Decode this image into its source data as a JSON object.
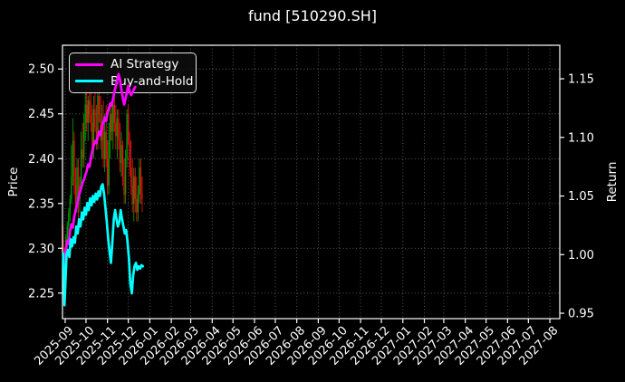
{
  "title": "fund [510290.SH]",
  "legend": {
    "items": [
      {
        "label": "AI Strategy",
        "color": "#ff00ff"
      },
      {
        "label": "Buy-and-Hold",
        "color": "#00ffff"
      }
    ]
  },
  "colors": {
    "background": "#000000",
    "text": "#ffffff",
    "axis": "#ffffff",
    "grid": "#ffffff",
    "up_candle": "#009c00",
    "down_candle": "#ea1010",
    "ai_strategy": "#ff00ff",
    "buy_and_hold": "#00ffff"
  },
  "chart_data": {
    "type": "candlestick",
    "title": "fund [510290.SH]",
    "price_axis": {
      "label": "Price",
      "tick_labels": [
        "2.25",
        "2.30",
        "2.35",
        "2.40",
        "2.45",
        "2.50"
      ],
      "lim": [
        2.2215,
        2.5265
      ]
    },
    "return_axis": {
      "label": "Return",
      "tick_labels": [
        "0.95",
        "1.00",
        "1.05",
        "1.10",
        "1.15"
      ],
      "lim": [
        0.9454,
        1.1786
      ]
    },
    "x_axis": {
      "tick_labels": [
        "2025-09",
        "2025-10",
        "2025-11",
        "2025-12",
        "2026-01",
        "2026-02",
        "2026-03",
        "2026-04",
        "2026-05",
        "2026-06",
        "2026-07",
        "2026-08",
        "2026-09",
        "2026-10",
        "2026-11",
        "2026-12",
        "2027-01",
        "2027-02",
        "2027-03",
        "2027-04",
        "2027-05",
        "2027-06",
        "2027-07",
        "2027-08"
      ],
      "tick_day_offsets": [
        0,
        30,
        61,
        91,
        122,
        153,
        181,
        212,
        242,
        273,
        303,
        334,
        365,
        395,
        426,
        456,
        487,
        518,
        546,
        577,
        607,
        638,
        668,
        699
      ],
      "lim_days": [
        -3.9,
        713.3
      ]
    },
    "candles_dohlc": [
      [
        -3,
        2.31,
        2.325,
        2.29,
        2.295
      ],
      [
        -1,
        2.295,
        2.3,
        2.237,
        2.28
      ],
      [
        1,
        2.28,
        2.315,
        2.27,
        2.31
      ],
      [
        3,
        2.31,
        2.33,
        2.295,
        2.325
      ],
      [
        5,
        2.325,
        2.345,
        2.31,
        2.34
      ],
      [
        7,
        2.34,
        2.36,
        2.33,
        2.355
      ],
      [
        9,
        2.355,
        2.415,
        2.35,
        2.38
      ],
      [
        11,
        2.38,
        2.445,
        2.37,
        2.42
      ],
      [
        13,
        2.42,
        2.43,
        2.36,
        2.37
      ],
      [
        15,
        2.37,
        2.39,
        2.345,
        2.35
      ],
      [
        17,
        2.35,
        2.4,
        2.34,
        2.39
      ],
      [
        19,
        2.39,
        2.4,
        2.32,
        2.355
      ],
      [
        21,
        2.355,
        2.38,
        2.34,
        2.37
      ],
      [
        23,
        2.37,
        2.43,
        2.365,
        2.41
      ],
      [
        25,
        2.41,
        2.44,
        2.39,
        2.4
      ],
      [
        27,
        2.4,
        2.45,
        2.39,
        2.44
      ],
      [
        29,
        2.44,
        2.475,
        2.42,
        2.46
      ],
      [
        31,
        2.46,
        2.48,
        2.43,
        2.44
      ],
      [
        33,
        2.44,
        2.47,
        2.42,
        2.465
      ],
      [
        35,
        2.465,
        2.485,
        2.44,
        2.45
      ],
      [
        37,
        2.45,
        2.475,
        2.43,
        2.44
      ],
      [
        39,
        2.44,
        2.46,
        2.4,
        2.41
      ],
      [
        41,
        2.41,
        2.47,
        2.4,
        2.455
      ],
      [
        43,
        2.455,
        2.48,
        2.43,
        2.435
      ],
      [
        45,
        2.435,
        2.46,
        2.41,
        2.42
      ],
      [
        47,
        2.42,
        2.48,
        2.41,
        2.47
      ],
      [
        49,
        2.47,
        2.485,
        2.44,
        2.45
      ],
      [
        51,
        2.45,
        2.47,
        2.41,
        2.42
      ],
      [
        53,
        2.42,
        2.46,
        2.4,
        2.44
      ],
      [
        55,
        2.44,
        2.465,
        2.39,
        2.4
      ],
      [
        57,
        2.4,
        2.45,
        2.385,
        2.43
      ],
      [
        59,
        2.43,
        2.46,
        2.39,
        2.4
      ],
      [
        61,
        2.4,
        2.42,
        2.36,
        2.37
      ],
      [
        63,
        2.37,
        2.44,
        2.36,
        2.42
      ],
      [
        65,
        2.42,
        2.46,
        2.4,
        2.45
      ],
      [
        67,
        2.45,
        2.465,
        2.42,
        2.43
      ],
      [
        69,
        2.43,
        2.47,
        2.41,
        2.46
      ],
      [
        71,
        2.46,
        2.475,
        2.43,
        2.44
      ],
      [
        73,
        2.44,
        2.46,
        2.41,
        2.425
      ],
      [
        75,
        2.425,
        2.455,
        2.4,
        2.445
      ],
      [
        77,
        2.445,
        2.455,
        2.41,
        2.42
      ],
      [
        79,
        2.42,
        2.44,
        2.385,
        2.395
      ],
      [
        81,
        2.395,
        2.43,
        2.38,
        2.415
      ],
      [
        83,
        2.415,
        2.42,
        2.37,
        2.38
      ],
      [
        85,
        2.38,
        2.4,
        2.35,
        2.36
      ],
      [
        87,
        2.36,
        2.41,
        2.35,
        2.4
      ],
      [
        89,
        2.4,
        2.455,
        2.39,
        2.45
      ],
      [
        91,
        2.45,
        2.46,
        2.415,
        2.42
      ],
      [
        93,
        2.42,
        2.43,
        2.38,
        2.39
      ],
      [
        95,
        2.39,
        2.42,
        2.36,
        2.37
      ],
      [
        97,
        2.37,
        2.4,
        2.34,
        2.35
      ],
      [
        99,
        2.35,
        2.39,
        2.33,
        2.38
      ],
      [
        101,
        2.38,
        2.39,
        2.34,
        2.355
      ],
      [
        103,
        2.355,
        2.38,
        2.33,
        2.34
      ],
      [
        105,
        2.34,
        2.37,
        2.33,
        2.36
      ],
      [
        107,
        2.36,
        2.4,
        2.35,
        2.39
      ],
      [
        109,
        2.39,
        2.4,
        2.35,
        2.36
      ],
      [
        111,
        2.36,
        2.38,
        2.34,
        2.355
      ]
    ],
    "series": [
      {
        "name": "AI Strategy",
        "axis": "return",
        "color": "#ff00ff",
        "points": [
          [
            -3,
            1.0
          ],
          [
            -1,
            0.997
          ],
          [
            1,
            1.005
          ],
          [
            3,
            1.012
          ],
          [
            5,
            1.009
          ],
          [
            7,
            1.02
          ],
          [
            9,
            1.026
          ],
          [
            11,
            1.023
          ],
          [
            13,
            1.032
          ],
          [
            15,
            1.038
          ],
          [
            17,
            1.042
          ],
          [
            19,
            1.048
          ],
          [
            21,
            1.053
          ],
          [
            23,
            1.057
          ],
          [
            25,
            1.061
          ],
          [
            27,
            1.064
          ],
          [
            29,
            1.068
          ],
          [
            31,
            1.071
          ],
          [
            33,
            1.077
          ],
          [
            35,
            1.075
          ],
          [
            37,
            1.082
          ],
          [
            39,
            1.088
          ],
          [
            41,
            1.093
          ],
          [
            43,
            1.097
          ],
          [
            45,
            1.095
          ],
          [
            47,
            1.101
          ],
          [
            49,
            1.105
          ],
          [
            51,
            1.102
          ],
          [
            53,
            1.109
          ],
          [
            55,
            1.113
          ],
          [
            57,
            1.117
          ],
          [
            59,
            1.114
          ],
          [
            61,
            1.121
          ],
          [
            63,
            1.125
          ],
          [
            65,
            1.129
          ],
          [
            67,
            1.127
          ],
          [
            69,
            1.133
          ],
          [
            71,
            1.139
          ],
          [
            73,
            1.144
          ],
          [
            75,
            1.149
          ],
          [
            77,
            1.154
          ],
          [
            79,
            1.149
          ],
          [
            81,
            1.141
          ],
          [
            83,
            1.134
          ],
          [
            85,
            1.128
          ],
          [
            87,
            1.133
          ],
          [
            89,
            1.139
          ],
          [
            91,
            1.144
          ],
          [
            93,
            1.139
          ],
          [
            95,
            1.136
          ],
          [
            97,
            1.138
          ],
          [
            99,
            1.141
          ],
          [
            101,
            1.143
          ]
        ]
      },
      {
        "name": "Buy-and-Hold",
        "axis": "return",
        "color": "#00ffff",
        "points": [
          [
            -3,
            1.001
          ],
          [
            -2,
            0.985
          ],
          [
            -1,
            0.957
          ],
          [
            0,
            0.972
          ],
          [
            2,
            1.0
          ],
          [
            4,
            1.004
          ],
          [
            6,
            0.998
          ],
          [
            8,
            1.013
          ],
          [
            10,
            1.007
          ],
          [
            12,
            1.015
          ],
          [
            14,
            1.01
          ],
          [
            16,
            1.024
          ],
          [
            18,
            1.018
          ],
          [
            20,
            1.03
          ],
          [
            22,
            1.024
          ],
          [
            24,
            1.036
          ],
          [
            26,
            1.03
          ],
          [
            28,
            1.04
          ],
          [
            30,
            1.034
          ],
          [
            32,
            1.044
          ],
          [
            34,
            1.038
          ],
          [
            36,
            1.048
          ],
          [
            38,
            1.042
          ],
          [
            40,
            1.05
          ],
          [
            42,
            1.045
          ],
          [
            44,
            1.052
          ],
          [
            46,
            1.047
          ],
          [
            48,
            1.054
          ],
          [
            50,
            1.05
          ],
          [
            52,
            1.058
          ],
          [
            54,
            1.06
          ],
          [
            56,
            1.052
          ],
          [
            58,
            1.04
          ],
          [
            60,
            1.028
          ],
          [
            62,
            1.014
          ],
          [
            64,
            1.002
          ],
          [
            66,
            0.993
          ],
          [
            68,
            1.01
          ],
          [
            70,
            1.03
          ],
          [
            72,
            1.038
          ],
          [
            74,
            1.03
          ],
          [
            76,
            1.024
          ],
          [
            78,
            1.028
          ],
          [
            80,
            1.038
          ],
          [
            82,
            1.03
          ],
          [
            84,
            1.024
          ],
          [
            86,
            1.018
          ],
          [
            88,
            1.021
          ],
          [
            90,
            1.01
          ],
          [
            92,
            0.996
          ],
          [
            94,
            0.975
          ],
          [
            96,
            0.967
          ],
          [
            98,
            0.982
          ],
          [
            100,
            0.99
          ],
          [
            102,
            0.993
          ],
          [
            104,
            0.987
          ],
          [
            106,
            0.99
          ],
          [
            108,
            0.988
          ],
          [
            110,
            0.991
          ],
          [
            112,
            0.99
          ]
        ]
      }
    ],
    "grid": true,
    "legend_position": "upper-left"
  }
}
